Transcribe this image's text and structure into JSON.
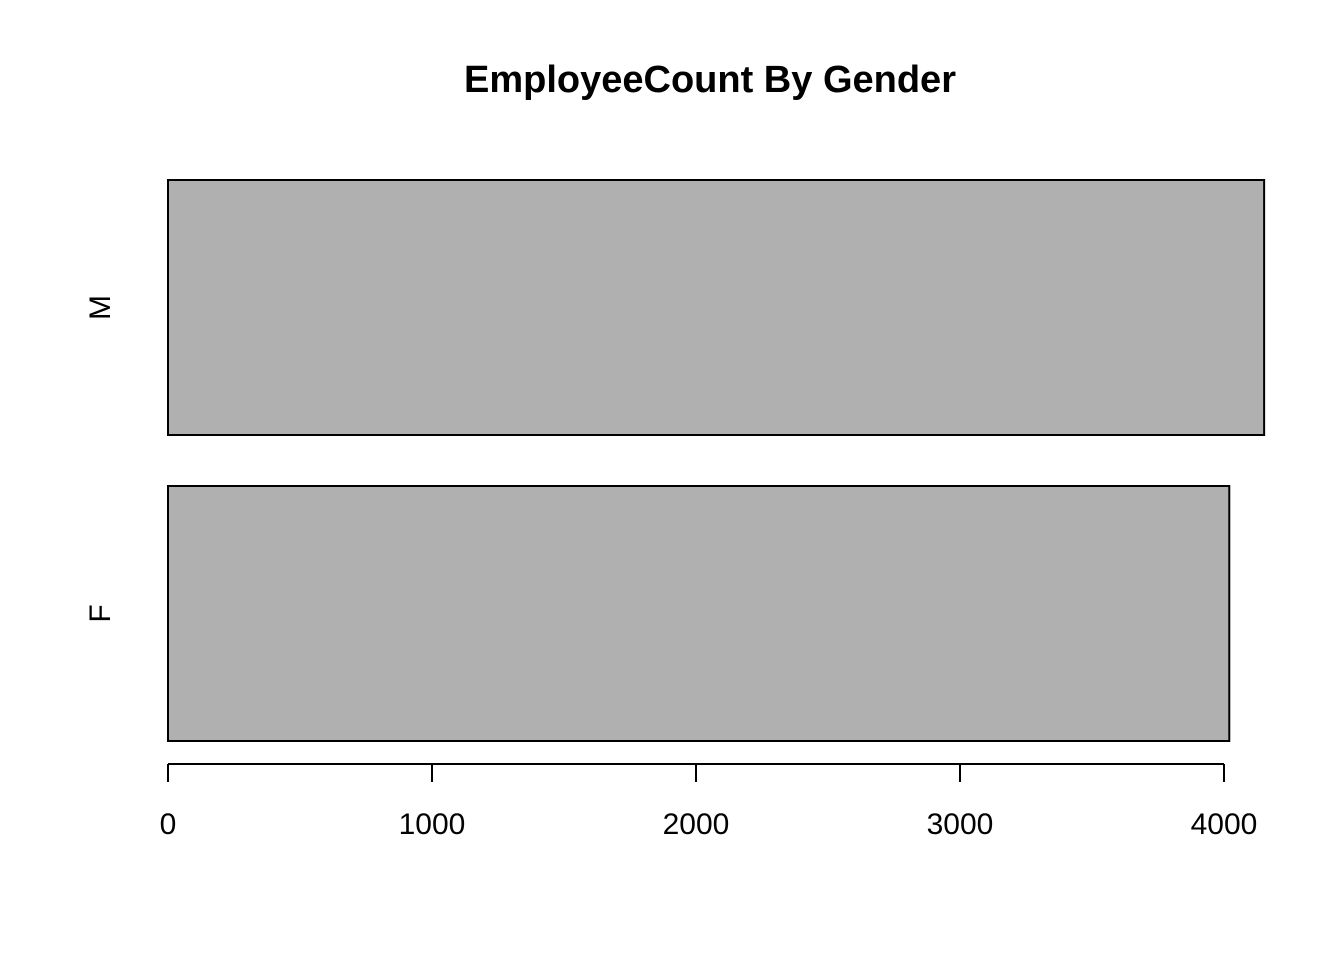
{
  "chart_data": {
    "type": "bar",
    "orientation": "horizontal",
    "title": "EmployeeCount By Gender",
    "xlabel": "",
    "ylabel": "",
    "categories": [
      "F",
      "M"
    ],
    "values": [
      4020,
      4152
    ],
    "xlim": [
      0,
      4152
    ],
    "x_ticks": [
      0,
      1000,
      2000,
      3000,
      4000
    ],
    "x_tick_labels": [
      "0",
      "1000",
      "2000",
      "3000",
      "4000"
    ],
    "grid": false,
    "legend": "none",
    "colors": {
      "bar_fill": "#b0b0b0",
      "bar_stroke": "#000000",
      "background": "#ffffff"
    }
  }
}
